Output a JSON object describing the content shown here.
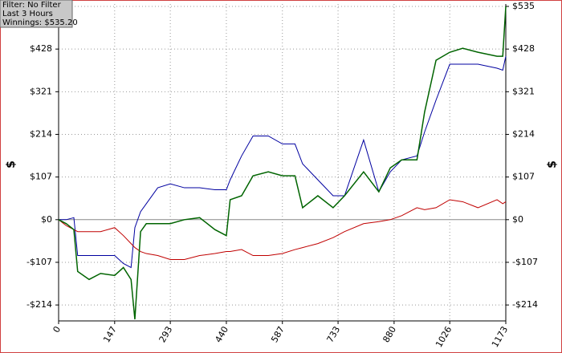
{
  "chart_data": {
    "type": "line",
    "info": [
      "Filter: No Filter",
      "Last  3 Hours",
      "Winnings: $535.20"
    ],
    "ylabel": "$",
    "x": [
      0,
      20,
      40,
      50,
      80,
      110,
      147,
      170,
      190,
      200,
      215,
      230,
      260,
      293,
      330,
      370,
      410,
      440,
      450,
      480,
      510,
      550,
      587,
      620,
      640,
      680,
      720,
      750,
      800,
      840,
      870,
      900,
      940,
      960,
      990,
      1026,
      1060,
      1100,
      1150,
      1165,
      1173
    ],
    "series": [
      {
        "color": "#0000a0",
        "values": [
          0,
          0,
          5,
          -90,
          -90,
          -90,
          -90,
          -110,
          -120,
          -20,
          20,
          40,
          80,
          90,
          80,
          80,
          75,
          75,
          100,
          160,
          210,
          210,
          190,
          190,
          140,
          100,
          60,
          60,
          200,
          70,
          120,
          150,
          160,
          220,
          300,
          390,
          390,
          390,
          380,
          375,
          410
        ]
      },
      {
        "color": "#c00000",
        "values": [
          0,
          -15,
          -25,
          -30,
          -30,
          -30,
          -20,
          -40,
          -60,
          -70,
          -80,
          -85,
          -90,
          -100,
          -100,
          -90,
          -85,
          -80,
          -80,
          -75,
          -90,
          -90,
          -85,
          -75,
          -70,
          -60,
          -45,
          -30,
          -10,
          -5,
          0,
          10,
          30,
          25,
          30,
          50,
          45,
          30,
          50,
          40,
          45
        ]
      },
      {
        "color": "#006400",
        "values": [
          0,
          -10,
          -25,
          -130,
          -150,
          -135,
          -140,
          -120,
          -150,
          -250,
          -30,
          -10,
          -10,
          -10,
          0,
          5,
          -25,
          -40,
          50,
          60,
          110,
          120,
          110,
          110,
          30,
          60,
          30,
          60,
          120,
          70,
          130,
          150,
          150,
          270,
          400,
          420,
          430,
          420,
          410,
          410,
          535
        ]
      }
    ],
    "xlim": [
      0,
      1173
    ],
    "xticks": [
      0,
      147,
      293,
      440,
      587,
      733,
      880,
      1026,
      1173
    ],
    "ylim": [
      -254,
      535
    ],
    "yticks": [
      {
        "value": -214,
        "label": "-$214"
      },
      {
        "value": -107,
        "label": "-$107"
      },
      {
        "value": 0,
        "label": "$0"
      },
      {
        "value": 107,
        "label": "$107"
      },
      {
        "value": 214,
        "label": "$214"
      },
      {
        "value": 321,
        "label": "$321"
      },
      {
        "value": 428,
        "label": "$428"
      },
      {
        "value": 535,
        "label": "$535"
      }
    ],
    "grid": true
  }
}
